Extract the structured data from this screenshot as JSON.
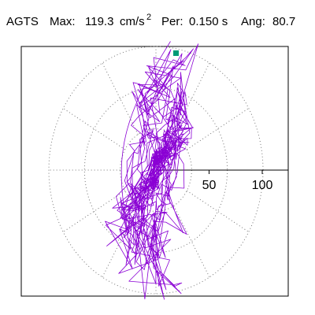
{
  "header": {
    "station": "AGTS",
    "max_label": "Max:",
    "max_value": "119.3",
    "max_unit": "cm/s",
    "max_unit_sup": "2",
    "per_label": "Per:",
    "per_value": "0.150 s",
    "ang_label": "Ang:",
    "ang_value": "80.7"
  },
  "chart_data": {
    "type": "polar-hodogram",
    "title": "AGTS  Max: 119.3 cm/s2  Per: 0.150 s  Ang: 80.7",
    "radial_ticks": [
      "50",
      "100"
    ],
    "radial_tick_values": [
      50,
      100
    ],
    "grid_circles": [
      40,
      80,
      120
    ],
    "grid_angles_deg": [
      0,
      30,
      60,
      90,
      120,
      150,
      180,
      210,
      240,
      270,
      300,
      330
    ],
    "grid": "dotted",
    "max_magnitude": 119.3,
    "max_angle_deg": 80.7,
    "series": [
      {
        "values_note": "",
        "color": "#8a00d4"
      }
    ],
    "marker_color": "#009b77"
  },
  "colors": {
    "trace": "#8a00d4",
    "marker": "#009b77",
    "grid": "#777777",
    "axis": "#000000"
  }
}
